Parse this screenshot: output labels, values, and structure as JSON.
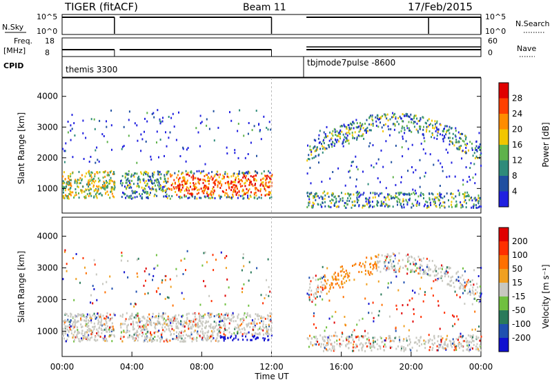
{
  "header": {
    "radar": "TIGER (fitACF)",
    "beam": "Beam 11",
    "date": "17/Feb/2015"
  },
  "top_panels": {
    "nsky_label": "N.Sky",
    "nsky_ticks": [
      "10^5",
      "10^0"
    ],
    "nsearch_label": "N.Search",
    "nsearch_ticks": [
      "10^5",
      "10^0"
    ],
    "freq_label_1": "Freq.",
    "freq_label_2": "[MHz]",
    "freq_ticks": [
      "18",
      "8"
    ],
    "nave_label": "Nave",
    "nave_ticks": [
      "60",
      "0"
    ],
    "cpid_label": "CPID",
    "cpid_values": [
      {
        "name": "themis 3300",
        "start_hour": 0
      },
      {
        "name": "tbjmode7pulse -8600",
        "start_hour": 14
      }
    ],
    "data_gaps_hours": [
      [
        3.0,
        3.3
      ],
      [
        12.0,
        14.0
      ]
    ],
    "freq_mhz": 10,
    "nave_after_14": 9
  },
  "chart_data": [
    {
      "type": "heatmap",
      "name": "power",
      "ylabel": "Slant Range [km]",
      "yticks": [
        "1000",
        "2000",
        "3000",
        "4000"
      ],
      "ylim": [
        200,
        4600
      ],
      "colorbar_label": "Power [dB]",
      "colorbar_ticks": [
        "4",
        "8",
        "12",
        "16",
        "20",
        "24",
        "28"
      ],
      "colors": [
        "#2020e0",
        "#1f4fa0",
        "#2e8b7a",
        "#5fb24b",
        "#f2c600",
        "#ff8c00",
        "#ff4000",
        "#e00000"
      ]
    },
    {
      "type": "heatmap",
      "name": "velocity",
      "ylabel": "Slant Range [km]",
      "yticks": [
        "1000",
        "2000",
        "3000",
        "4000"
      ],
      "ylim": [
        200,
        4600
      ],
      "colorbar_label": "Velocity [m s⁻¹]",
      "colorbar_ticks": [
        "200",
        "100",
        "50",
        "15",
        "-15",
        "-50",
        "-100",
        "-200"
      ],
      "colors": [
        "#1010d0",
        "#2050b0",
        "#2a7a5a",
        "#70c040",
        "#c8c8c0",
        "#f0a020",
        "#ff7000",
        "#ff3000",
        "#e00000"
      ]
    }
  ],
  "xaxis": {
    "label": "Time UT",
    "ticks": [
      "00:00",
      "04:00",
      "08:00",
      "12:00",
      "16:00",
      "20:00",
      "00:00"
    ]
  }
}
